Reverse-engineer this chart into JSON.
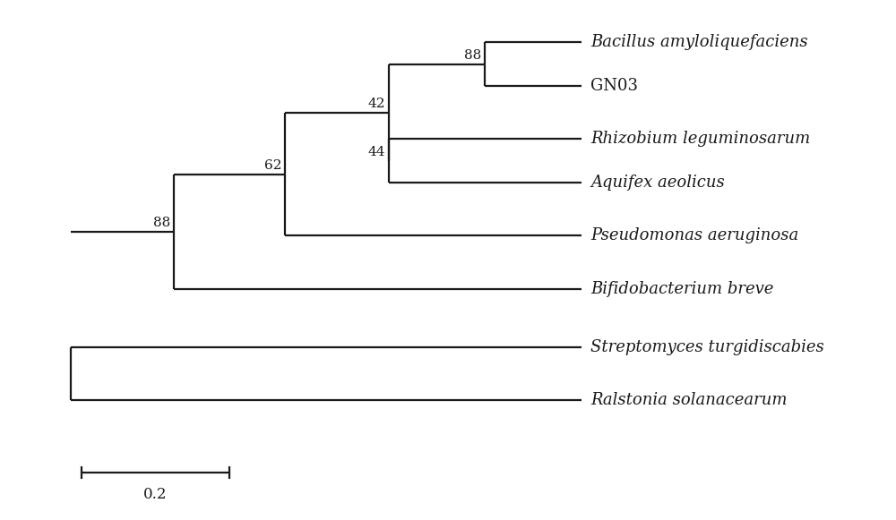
{
  "background_color": "#ffffff",
  "line_color": "#1a1a1a",
  "line_width": 1.6,
  "fig_width": 10.0,
  "fig_height": 5.81,
  "taxa": [
    "Bacillus amyloliquefaciens",
    "GN03",
    "Rhizobium leguminosarum",
    "Aquifex aeolicus",
    "Pseudomonas aeruginosa",
    "Bifidobacterium breve",
    "Streptomyces turgidiscabies",
    "Ralstonia solanacearum"
  ],
  "taxa_italic": [
    true,
    false,
    true,
    true,
    true,
    true,
    true,
    true
  ],
  "fontsize_taxa": 13,
  "fontsize_bootstrap": 11,
  "xlim": [
    -0.05,
    1.15
  ],
  "ylim": [
    -1.8,
    8.8
  ]
}
